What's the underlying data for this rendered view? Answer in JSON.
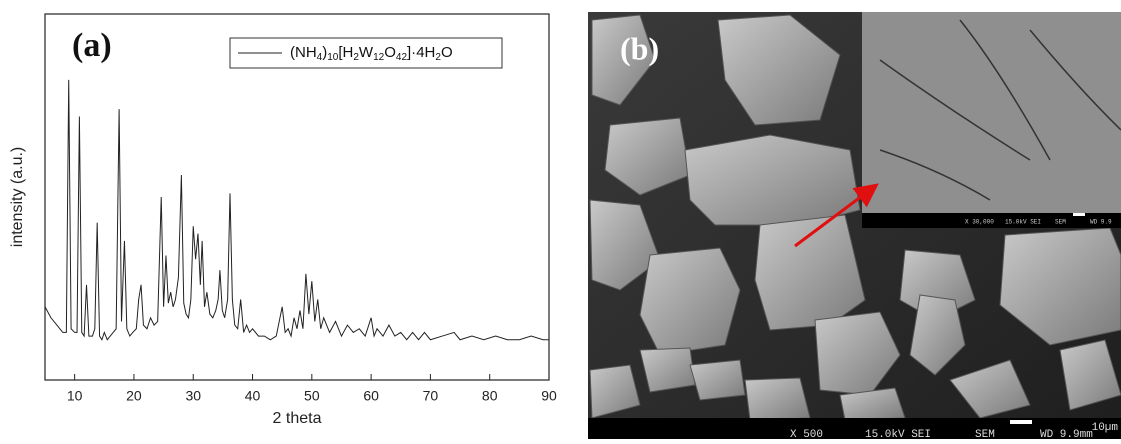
{
  "chart_data": {
    "type": "line",
    "panel_label": "(a)",
    "xlabel": "2 theta",
    "ylabel": "intensity (a.u.)",
    "xlim": [
      5,
      90
    ],
    "xticks": [
      10,
      20,
      30,
      40,
      50,
      60,
      70,
      80,
      90
    ],
    "ylim": [
      0,
      100
    ],
    "series": [
      {
        "name": "(NH4)10[H2W12O42]·4H2O",
        "color": "#222222",
        "x": [
          5,
          6,
          7,
          8,
          8.6,
          9,
          9.4,
          10,
          10.4,
          10.8,
          11.2,
          11.6,
          12,
          12.4,
          13,
          13.4,
          13.8,
          14.2,
          14.6,
          15,
          15.5,
          16,
          16.5,
          17,
          17.5,
          17.9,
          18.4,
          18.8,
          19.3,
          19.8,
          20.4,
          20.8,
          21.2,
          21.6,
          22.2,
          22.8,
          23.4,
          24,
          24.6,
          25,
          25.4,
          25.8,
          26.2,
          26.6,
          27,
          27.5,
          28,
          28.4,
          28.8,
          29.2,
          29.6,
          30,
          30.4,
          30.8,
          31.2,
          31.5,
          31.9,
          32.3,
          32.8,
          33.3,
          33.8,
          34.2,
          34.5,
          34.9,
          35.3,
          35.8,
          36.2,
          36.6,
          37,
          37.5,
          38,
          38.5,
          39,
          39.5,
          40,
          41,
          42,
          43,
          44,
          45,
          45.5,
          46,
          46.5,
          47,
          47.5,
          48,
          48.5,
          49,
          49.5,
          50,
          50.5,
          51,
          51.5,
          52,
          53,
          54,
          55,
          56,
          57,
          58,
          59,
          60,
          60.5,
          61,
          62,
          63,
          64,
          65,
          66,
          67,
          68,
          69,
          70,
          72,
          74,
          75,
          77,
          79,
          81,
          83,
          85,
          87,
          89,
          90
        ],
        "values": [
          20,
          17,
          15,
          13,
          13,
          82,
          14,
          13,
          13,
          72,
          13,
          12,
          26,
          12,
          12,
          14,
          43,
          12,
          11,
          13,
          11,
          12,
          13,
          14,
          74,
          16,
          38,
          14,
          12,
          13,
          14,
          22,
          26,
          15,
          14,
          17,
          15,
          16,
          50,
          20,
          34,
          21,
          24,
          20,
          22,
          28,
          56,
          21,
          18,
          17,
          22,
          42,
          33,
          40,
          26,
          38,
          20,
          24,
          18,
          17,
          19,
          22,
          30,
          19,
          17,
          22,
          51,
          22,
          15,
          14,
          22,
          13,
          15,
          13,
          14,
          12,
          12,
          11,
          12,
          20,
          13,
          14,
          12,
          17,
          14,
          19,
          14,
          29,
          18,
          27,
          16,
          22,
          14,
          17,
          13,
          16,
          12,
          15,
          13,
          14,
          12,
          17,
          12,
          14,
          12,
          15,
          12,
          13,
          11,
          13,
          11,
          13,
          11,
          12,
          13,
          11,
          12,
          11,
          12,
          11,
          11,
          12,
          11,
          11
        ]
      }
    ]
  },
  "image": {
    "panel_label": "(b)",
    "scale_label": "10µm",
    "info": [
      "X 500",
      "15.0kV SEI",
      "SEM",
      "WD 9.9mm"
    ],
    "inset_info": [
      "X 30,000",
      "15.0kV SEI",
      "SEM",
      "WD 9.9"
    ]
  }
}
